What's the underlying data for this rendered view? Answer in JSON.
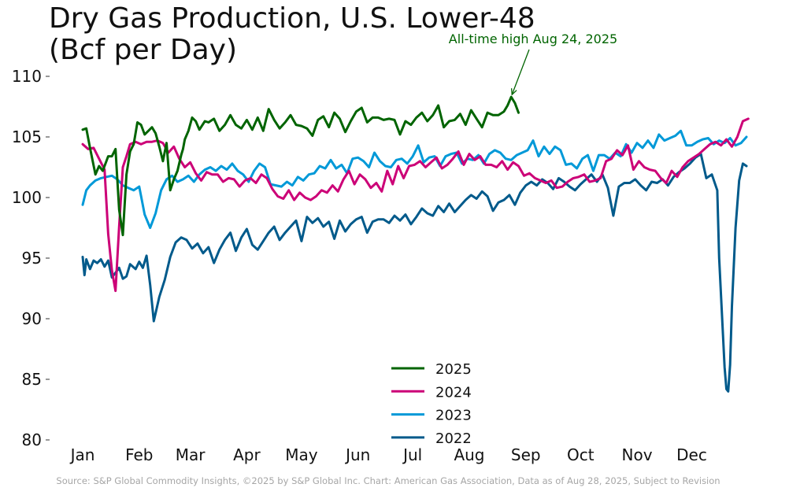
{
  "chart_data": {
    "type": "line",
    "title_line1": "Dry Gas Production, U.S. Lower-48",
    "title_line2": "(Bcf per Day)",
    "source": "Source: S&P Global Commodity Insights, ©2025 by S&P Global Inc.  Chart: American Gas Association, Data as of Aug 28, 2025, Subject to Revision",
    "ylim": [
      80,
      110
    ],
    "yticks": [
      80,
      85,
      90,
      95,
      100,
      105,
      110
    ],
    "xticks": [
      {
        "label": "Jan",
        "day": 1
      },
      {
        "label": "Feb",
        "day": 32
      },
      {
        "label": "Mar",
        "day": 60
      },
      {
        "label": "Apr",
        "day": 91
      },
      {
        "label": "May",
        "day": 121
      },
      {
        "label": "Jun",
        "day": 152
      },
      {
        "label": "Jul",
        "day": 182
      },
      {
        "label": "Aug",
        "day": 213
      },
      {
        "label": "Sep",
        "day": 244
      },
      {
        "label": "Oct",
        "day": 274
      },
      {
        "label": "Nov",
        "day": 305
      },
      {
        "label": "Dec",
        "day": 335
      }
    ],
    "x_unit": "day of year",
    "grid": false,
    "legend_position": "bottom-center",
    "annotation": {
      "text": "All-time high Aug 24, 2025",
      "day": 236,
      "value": 108.3,
      "color": "#006400"
    },
    "series": [
      {
        "name": "2025",
        "color": "#006400",
        "x": [
          1,
          3,
          5,
          8,
          10,
          12,
          15,
          17,
          19,
          21,
          23,
          25,
          27,
          29,
          31,
          33,
          35,
          37,
          39,
          41,
          43,
          45,
          47,
          49,
          51,
          53,
          55,
          56,
          57,
          59,
          61,
          63,
          65,
          68,
          70,
          73,
          76,
          79,
          82,
          85,
          88,
          91,
          94,
          97,
          100,
          103,
          106,
          109,
          112,
          115,
          118,
          121,
          124,
          127,
          130,
          133,
          136,
          139,
          142,
          145,
          148,
          151,
          154,
          157,
          160,
          163,
          166,
          169,
          172,
          175,
          178,
          181,
          184,
          187,
          190,
          193,
          196,
          199,
          202,
          205,
          208,
          211,
          214,
          217,
          220,
          223,
          226,
          229,
          232,
          234,
          236,
          238,
          240
        ],
        "y": [
          105.6,
          105.7,
          104.1,
          101.9,
          102.6,
          102.2,
          103.4,
          103.4,
          104.0,
          99.0,
          96.9,
          101.9,
          103.8,
          104.4,
          106.2,
          106.0,
          105.2,
          105.5,
          105.8,
          105.3,
          104.2,
          103.0,
          104.5,
          100.6,
          101.5,
          102.2,
          103.5,
          104.0,
          104.8,
          105.5,
          106.6,
          106.3,
          105.6,
          106.3,
          106.2,
          106.5,
          105.5,
          106.0,
          106.8,
          106.0,
          105.7,
          106.4,
          105.6,
          106.6,
          105.5,
          107.3,
          106.4,
          105.7,
          106.2,
          106.8,
          106.0,
          105.9,
          105.7,
          105.1,
          106.4,
          106.7,
          105.8,
          107.0,
          106.5,
          105.4,
          106.3,
          107.1,
          107.4,
          106.2,
          106.6,
          106.6,
          106.4,
          106.5,
          106.4,
          105.2,
          106.3,
          106.0,
          106.6,
          107.0,
          106.3,
          106.8,
          107.6,
          105.8,
          106.3,
          106.4,
          106.9,
          106.0,
          107.2,
          106.5,
          105.8,
          107.0,
          106.8,
          106.8,
          107.1,
          107.6,
          108.3,
          107.8,
          107.0
        ]
      },
      {
        "name": "2024",
        "color": "#cc0077",
        "x": [
          1,
          4,
          7,
          10,
          13,
          15,
          17,
          19,
          21,
          23,
          25,
          27,
          30,
          33,
          36,
          39,
          42,
          45,
          48,
          51,
          54,
          57,
          60,
          63,
          66,
          69,
          72,
          75,
          78,
          81,
          84,
          87,
          90,
          93,
          96,
          99,
          102,
          105,
          108,
          111,
          114,
          117,
          120,
          123,
          126,
          129,
          132,
          135,
          138,
          141,
          144,
          147,
          150,
          153,
          156,
          159,
          162,
          165,
          168,
          171,
          174,
          177,
          180,
          183,
          186,
          189,
          192,
          195,
          198,
          201,
          204,
          207,
          210,
          213,
          216,
          219,
          222,
          225,
          228,
          231,
          234,
          237,
          240,
          243,
          246,
          249,
          252,
          255,
          258,
          261,
          264,
          267,
          270,
          273,
          276,
          279,
          282,
          285,
          288,
          291,
          294,
          297,
          300,
          303,
          306,
          309,
          312,
          315,
          318,
          321,
          324,
          327,
          330,
          333,
          336,
          339,
          342,
          345,
          348,
          351,
          354,
          357,
          360,
          363,
          366
        ],
        "y": [
          104.4,
          104.0,
          104.1,
          103.2,
          102.3,
          97.0,
          94.0,
          92.3,
          97.6,
          102.5,
          103.4,
          104.4,
          104.6,
          104.4,
          104.6,
          104.6,
          104.7,
          104.5,
          103.7,
          104.2,
          103.2,
          102.5,
          102.9,
          102.0,
          101.4,
          102.1,
          101.9,
          101.9,
          101.3,
          101.6,
          101.5,
          100.9,
          101.4,
          101.6,
          101.2,
          101.9,
          101.6,
          100.7,
          100.1,
          99.9,
          100.6,
          99.8,
          100.4,
          100.0,
          99.8,
          100.1,
          100.6,
          100.4,
          101.0,
          100.5,
          101.5,
          102.2,
          101.1,
          101.9,
          101.5,
          100.8,
          101.2,
          100.5,
          102.2,
          101.1,
          102.6,
          101.6,
          102.6,
          102.7,
          103.0,
          102.5,
          102.9,
          103.3,
          102.4,
          102.7,
          103.2,
          103.8,
          102.7,
          103.6,
          103.1,
          103.4,
          102.7,
          102.7,
          102.5,
          103.0,
          102.3,
          102.9,
          102.6,
          101.8,
          102.0,
          101.6,
          101.4,
          101.2,
          101.4,
          100.8,
          100.9,
          101.3,
          101.6,
          101.7,
          101.9,
          101.3,
          101.4,
          101.6,
          103.0,
          103.2,
          103.9,
          103.5,
          104.3,
          102.3,
          103.0,
          102.5,
          102.3,
          102.2,
          101.6,
          101.2,
          102.2,
          101.7,
          102.5,
          103.0,
          103.3,
          103.6,
          104.0,
          104.4,
          104.6,
          104.3,
          104.8,
          104.2,
          105.0,
          106.3,
          106.5
        ]
      },
      {
        "name": "2023",
        "color": "#0099d8",
        "x": [
          1,
          3,
          5,
          8,
          11,
          14,
          17,
          20,
          23,
          26,
          29,
          32,
          35,
          38,
          41,
          44,
          47,
          50,
          53,
          56,
          59,
          62,
          65,
          68,
          71,
          74,
          77,
          80,
          83,
          86,
          89,
          92,
          95,
          98,
          101,
          104,
          107,
          110,
          113,
          116,
          119,
          122,
          125,
          128,
          131,
          134,
          137,
          140,
          143,
          146,
          149,
          152,
          155,
          158,
          161,
          164,
          167,
          170,
          173,
          176,
          179,
          182,
          185,
          188,
          191,
          194,
          197,
          200,
          203,
          206,
          209,
          212,
          215,
          218,
          221,
          224,
          227,
          230,
          233,
          236,
          239,
          242,
          245,
          248,
          251,
          254,
          257,
          260,
          263,
          266,
          269,
          272,
          275,
          278,
          281,
          284,
          287,
          290,
          293,
          296,
          299,
          302,
          305,
          308,
          311,
          314,
          317,
          320,
          323,
          326,
          329,
          332,
          335,
          338,
          341,
          344,
          347,
          350,
          353,
          356,
          359,
          362,
          365
        ],
        "y": [
          99.4,
          100.6,
          101.0,
          101.4,
          101.6,
          101.7,
          101.8,
          101.5,
          101.0,
          100.8,
          100.6,
          100.9,
          98.6,
          97.5,
          98.7,
          100.6,
          101.5,
          101.8,
          101.3,
          101.5,
          101.8,
          101.3,
          101.9,
          102.3,
          102.5,
          102.2,
          102.6,
          102.3,
          102.8,
          102.2,
          101.9,
          101.3,
          102.2,
          102.8,
          102.5,
          101.1,
          101.0,
          100.9,
          101.3,
          101.0,
          101.7,
          101.4,
          101.9,
          102.0,
          102.6,
          102.4,
          103.1,
          102.4,
          102.7,
          102.0,
          103.2,
          103.3,
          103.0,
          102.5,
          103.7,
          103.0,
          102.6,
          102.5,
          103.1,
          103.2,
          102.8,
          103.4,
          104.3,
          102.9,
          103.3,
          103.4,
          102.6,
          103.4,
          103.6,
          103.7,
          102.8,
          103.2,
          103.1,
          103.5,
          102.8,
          103.6,
          103.9,
          103.7,
          103.2,
          103.1,
          103.5,
          103.7,
          103.9,
          104.7,
          103.4,
          104.2,
          103.6,
          104.2,
          103.9,
          102.7,
          102.8,
          102.4,
          103.2,
          103.5,
          102.2,
          103.5,
          103.5,
          103.2,
          103.7,
          103.4,
          104.4,
          103.7,
          104.5,
          104.1,
          104.7,
          104.1,
          105.2,
          104.7,
          104.9,
          105.1,
          105.5,
          104.3,
          104.3,
          104.6,
          104.8,
          104.9,
          104.4,
          104.7,
          104.5,
          104.9,
          104.3,
          104.5,
          105.0
        ]
      },
      {
        "name": "2022",
        "color": "#005a8b",
        "x": [
          1,
          2,
          3,
          5,
          7,
          9,
          11,
          13,
          15,
          17,
          19,
          21,
          23,
          25,
          27,
          30,
          32,
          34,
          36,
          38,
          40,
          43,
          46,
          49,
          52,
          55,
          58,
          61,
          64,
          67,
          70,
          73,
          76,
          79,
          82,
          85,
          88,
          91,
          94,
          97,
          100,
          103,
          106,
          109,
          112,
          115,
          118,
          121,
          124,
          127,
          130,
          133,
          136,
          139,
          142,
          145,
          148,
          151,
          154,
          157,
          160,
          163,
          166,
          169,
          172,
          175,
          178,
          181,
          184,
          187,
          190,
          193,
          196,
          199,
          202,
          205,
          208,
          211,
          214,
          217,
          220,
          223,
          226,
          229,
          232,
          235,
          238,
          241,
          244,
          247,
          250,
          253,
          256,
          259,
          262,
          265,
          268,
          271,
          274,
          277,
          280,
          283,
          286,
          289,
          292,
          295,
          298,
          301,
          304,
          307,
          310,
          313,
          316,
          319,
          322,
          325,
          328,
          331,
          334,
          337,
          340,
          343,
          346,
          349,
          350,
          352,
          353,
          354,
          355,
          356,
          357,
          359,
          361,
          363,
          365
        ],
        "y": [
          95.1,
          93.6,
          94.9,
          94.1,
          94.8,
          94.6,
          94.9,
          94.3,
          94.8,
          93.4,
          93.8,
          94.2,
          93.3,
          93.5,
          94.5,
          94.1,
          94.7,
          94.2,
          95.2,
          92.8,
          89.8,
          91.8,
          93.2,
          95.1,
          96.3,
          96.7,
          96.5,
          95.8,
          96.2,
          95.4,
          95.9,
          94.6,
          95.7,
          96.5,
          97.1,
          95.6,
          96.7,
          97.4,
          96.1,
          95.7,
          96.4,
          97.1,
          97.6,
          96.5,
          97.1,
          97.6,
          98.1,
          96.4,
          98.4,
          97.9,
          98.3,
          97.6,
          98.0,
          96.6,
          98.1,
          97.2,
          97.8,
          98.2,
          98.4,
          97.1,
          98.0,
          98.2,
          98.2,
          97.9,
          98.5,
          98.1,
          98.6,
          97.8,
          98.4,
          99.1,
          98.7,
          98.5,
          99.3,
          98.8,
          99.5,
          98.8,
          99.3,
          99.8,
          100.2,
          99.9,
          100.5,
          100.1,
          98.9,
          99.6,
          99.8,
          100.2,
          99.4,
          100.4,
          101.0,
          101.3,
          101.0,
          101.5,
          101.2,
          100.7,
          101.6,
          101.3,
          100.9,
          100.6,
          101.1,
          101.5,
          101.9,
          101.3,
          101.9,
          100.8,
          98.5,
          100.9,
          101.2,
          101.2,
          101.5,
          101.0,
          100.6,
          101.3,
          101.2,
          101.5,
          101.0,
          101.7,
          102.1,
          102.4,
          102.8,
          103.3,
          103.6,
          101.6,
          101.9,
          100.6,
          95.0,
          89.0,
          86.0,
          84.2,
          84.0,
          86.2,
          91.0,
          97.5,
          101.4,
          102.8,
          102.6
        ]
      }
    ]
  }
}
